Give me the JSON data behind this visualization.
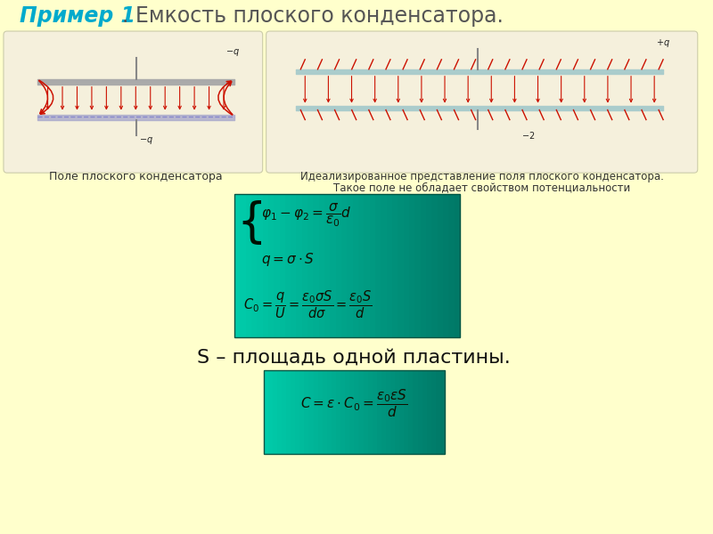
{
  "bg_color": "#ffffcc",
  "title_bold": "Пример 1",
  "title_bold_color": "#00aacc",
  "title_dot_rest": ". Емкость плоского конденсатора.",
  "title_rest_color": "#555555",
  "title_fontsize": 17,
  "left_label": "Поле плоского конденсатора",
  "right_label1": "Идеализированное представление поля плоского конденсатора.",
  "right_label2": "Такое поле не обладает свойством потенциальности",
  "label_fontsize": 9,
  "label_color": "#333333",
  "plate_color": "#888888",
  "arrow_color": "#cc1100",
  "formula_color_left": "#00bbaa",
  "formula_color_right": "#009977",
  "formula_text_color": "#111100",
  "s_text": "S – площадь одной пластины.",
  "s_fontsize": 16,
  "diagram_bg": "#f5f0dc",
  "diagram_edge": "#ccccaa"
}
